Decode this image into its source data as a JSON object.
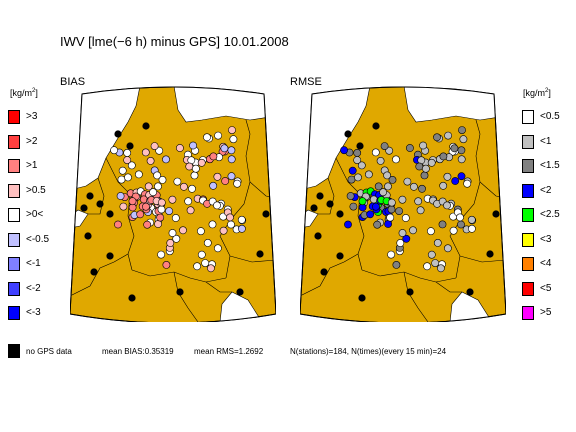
{
  "title": "IWV [lme(−6 h) minus GPS] 10.01.2008",
  "unit": {
    "base": "[kg/m",
    "exp": "2",
    "close": "]"
  },
  "panels": [
    {
      "label": "BIAS"
    },
    {
      "label": "RMSE"
    }
  ],
  "colors": {
    "land": "#E0A800",
    "sea": "#FFFFFF",
    "border": "#000000"
  },
  "bias_legend": [
    {
      "label": ">3",
      "color": "#FF0000"
    },
    {
      "label": ">2",
      "color": "#FF4040"
    },
    {
      "label": ">1",
      "color": "#FF8080"
    },
    {
      "label": ">0.5",
      "color": "#FFC0C0"
    },
    {
      "label": ">0<",
      "color": "#FFFFFF"
    },
    {
      "label": "<-0.5",
      "color": "#C0C0FF"
    },
    {
      "label": "<-1",
      "color": "#8080FF"
    },
    {
      "label": "<-2",
      "color": "#4040FF"
    },
    {
      "label": "<-3",
      "color": "#0000FF"
    }
  ],
  "rmse_legend": [
    {
      "label": "<0.5",
      "color": "#FFFFFF"
    },
    {
      "label": "<1",
      "color": "#C0C0C0"
    },
    {
      "label": "<1.5",
      "color": "#808080"
    },
    {
      "label": "<2",
      "color": "#0000FF"
    },
    {
      "label": "<2.5",
      "color": "#00FF00"
    },
    {
      "label": "<3",
      "color": "#FFFF00"
    },
    {
      "label": "<4",
      "color": "#FF8000"
    },
    {
      "label": "<5",
      "color": "#FF0000"
    },
    {
      "label": ">5",
      "color": "#FF00FF"
    }
  ],
  "nogps": {
    "label": "no GPS data",
    "color": "#000000"
  },
  "stats": {
    "mean_bias": "mean BIAS:0.35319",
    "mean_rms": "mean RMS=1.2692",
    "stations": "N(stations)=184, N(times)(every 15 min)=24"
  }
}
